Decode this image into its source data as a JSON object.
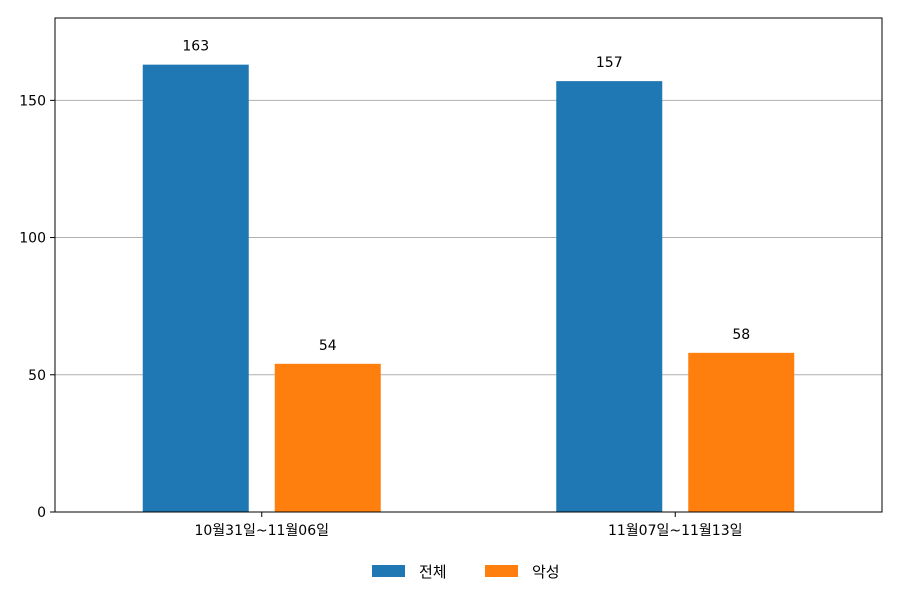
{
  "chart_data": {
    "type": "bar",
    "categories": [
      "10월31일~11월06일",
      "11월07일~11월13일"
    ],
    "series": [
      {
        "name": "전체",
        "values": [
          163,
          157
        ],
        "color": "#1f77b4"
      },
      {
        "name": "악성",
        "values": [
          54,
          58
        ],
        "color": "#ff7f0e"
      }
    ],
    "ylim": [
      0,
      180
    ],
    "yticks": [
      0,
      50,
      100,
      150
    ],
    "grid": "horizontal",
    "legend_position": "bottom-center",
    "data_labels": true
  }
}
